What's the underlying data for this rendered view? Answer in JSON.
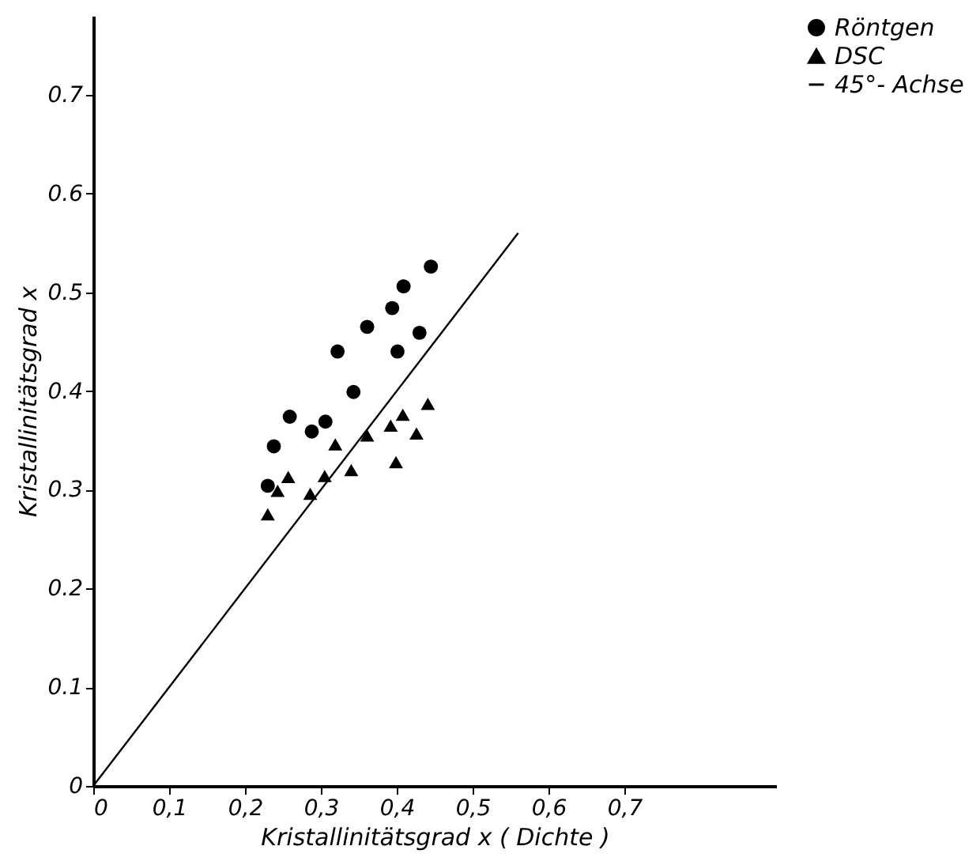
{
  "chart_data": {
    "type": "scatter",
    "xlabel": "Kristallinitätsgrad  x   ( Dichte )",
    "ylabel": "Kristallinitätsgrad  x",
    "xlim": [
      0,
      0.9
    ],
    "ylim": [
      0,
      0.78
    ],
    "xticks": [
      0,
      {
        "value": 0.1,
        "label": "0,1"
      },
      {
        "value": 0.2,
        "label": "0,2"
      },
      {
        "value": 0.3,
        "label": "0,3"
      },
      {
        "value": 0.4,
        "label": "0,4"
      },
      {
        "value": 0.5,
        "label": "0,5"
      },
      {
        "value": 0.6,
        "label": "0,6"
      },
      {
        "value": 0.7,
        "label": "0,7"
      }
    ],
    "yticks": [
      0,
      0.1,
      0.2,
      0.3,
      0.4,
      0.5,
      0.6,
      0.7
    ],
    "grid": false,
    "legend": "right",
    "series": [
      {
        "name": "Röntgen",
        "marker": "circle",
        "color": "#000000",
        "x": [
          0.23,
          0.238,
          0.259,
          0.288,
          0.306,
          0.322,
          0.343,
          0.361,
          0.394,
          0.401,
          0.409,
          0.43,
          0.445
        ],
        "values": [
          0.304,
          0.344,
          0.374,
          0.359,
          0.369,
          0.44,
          0.399,
          0.465,
          0.484,
          0.44,
          0.506,
          0.459,
          0.526
        ]
      },
      {
        "name": "DSC",
        "marker": "triangle",
        "color": "#000000",
        "x": [
          0.23,
          0.243,
          0.257,
          0.286,
          0.305,
          0.319,
          0.34,
          0.361,
          0.392,
          0.399,
          0.408,
          0.426,
          0.441
        ],
        "values": [
          0.275,
          0.299,
          0.313,
          0.296,
          0.314,
          0.346,
          0.32,
          0.355,
          0.365,
          0.328,
          0.376,
          0.357,
          0.387
        ]
      },
      {
        "name": "45°- Achse",
        "type": "line",
        "line_style": "solid",
        "color": "#000000",
        "x": [
          0,
          0.56
        ],
        "values": [
          0,
          0.56
        ]
      }
    ]
  }
}
